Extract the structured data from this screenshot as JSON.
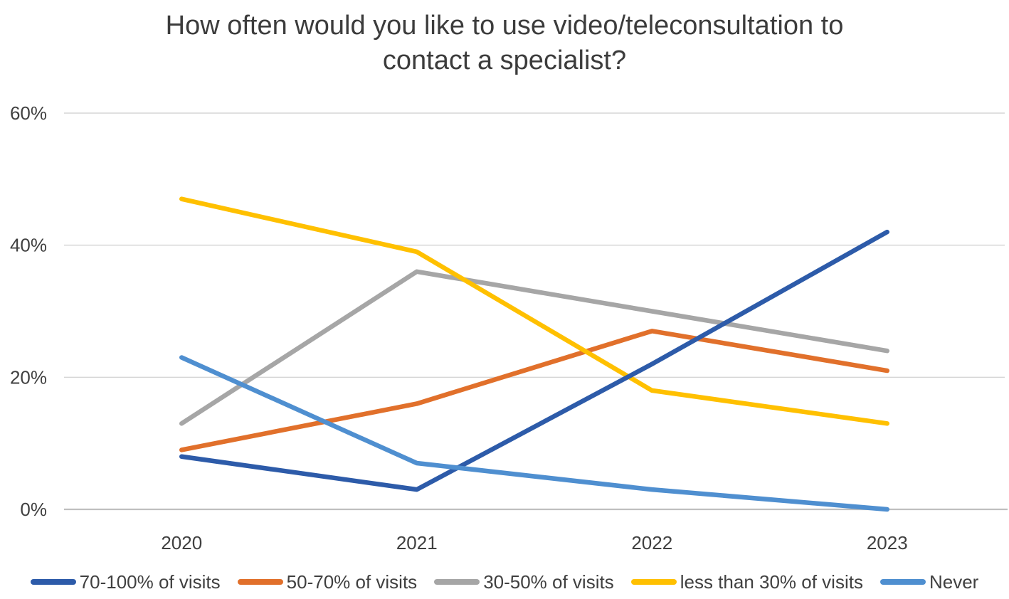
{
  "title_lines": [
    "How often would you like to use video/teleconsultation to",
    "contact a specialist?"
  ],
  "chart_data": {
    "type": "line",
    "title": "How often would you like to use video/teleconsultation to contact a specialist?",
    "x": [
      "2020",
      "2021",
      "2022",
      "2023"
    ],
    "series": [
      {
        "name": "70-100% of visits",
        "color": "#2D5BA9",
        "values": [
          8,
          3,
          22,
          42
        ]
      },
      {
        "name": "50-70% of visits",
        "color": "#E1702B",
        "values": [
          9,
          16,
          27,
          21
        ]
      },
      {
        "name": "30-50% of visits",
        "color": "#A6A6A6",
        "values": [
          13,
          36,
          30,
          24
        ]
      },
      {
        "name": "less than 30% of visits",
        "color": "#FFC000",
        "values": [
          47,
          39,
          18,
          13
        ]
      },
      {
        "name": "Never",
        "color": "#4F8FD0",
        "values": [
          23,
          7,
          3,
          0
        ]
      }
    ],
    "xlabel": "",
    "ylabel": "",
    "ylim": [
      0,
      60
    ],
    "yticks": [
      0,
      20,
      40,
      60
    ],
    "ytick_suffix": "%",
    "grid": "horizontal",
    "legend_position": "bottom",
    "gridline_color": "#D6D6D6",
    "axis_line_color": "#BFBFBF",
    "text_color": "#404040"
  }
}
